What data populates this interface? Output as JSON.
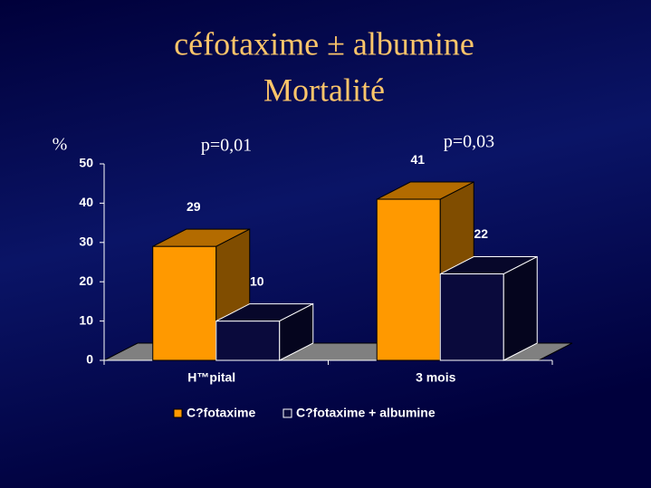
{
  "chart_data": {
    "type": "bar3d",
    "title": "céfotaxime ± albumine",
    "subtitle": "Mortalité",
    "y_label": "%",
    "annotations": [
      "p=0,01",
      "p=0,03"
    ],
    "categories": [
      "H™pital",
      "3 mois"
    ],
    "series": [
      {
        "name": "C?fotaxime",
        "color": "#ff9900",
        "values": [
          29,
          41
        ]
      },
      {
        "name": "C?fotaxime + albumine",
        "color": "#0a0a3c",
        "values": [
          10,
          22
        ]
      }
    ],
    "ylim": [
      0,
      50
    ],
    "yticks": [
      0,
      10,
      20,
      30,
      40,
      50
    ],
    "grid": false
  }
}
